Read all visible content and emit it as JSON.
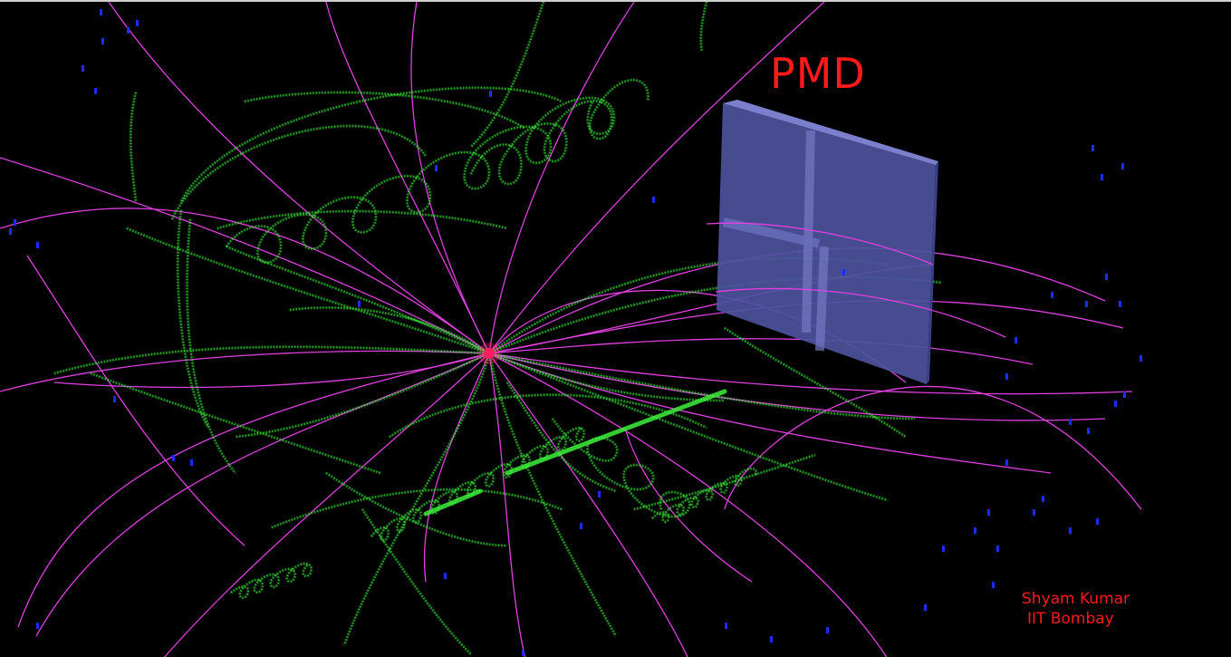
{
  "detector_label": "PMD",
  "credit": {
    "name": "Shyam Kumar",
    "institution": "IIT Bombay"
  },
  "colors": {
    "background": "#000000",
    "charged_tracks": "#e040e0",
    "hits": "#3cf03c",
    "clusters": "#1a2cff",
    "vertex": "#ff2060",
    "pmd_face": "#5d62b8",
    "label": "#ff1a1a"
  }
}
